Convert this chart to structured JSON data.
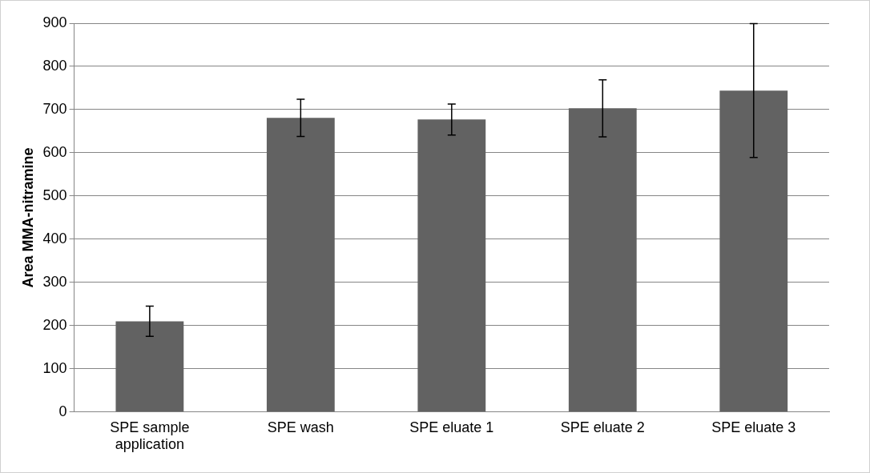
{
  "chart_data": {
    "type": "bar",
    "ylabel": "Area MMA-nitramine",
    "categories": [
      "SPE sample application",
      "SPE wash",
      "SPE eluate 1",
      "SPE eluate 2",
      "SPE eluate 3"
    ],
    "values": [
      210,
      681,
      677,
      703,
      744
    ],
    "errors": [
      35,
      43,
      36,
      66,
      155
    ],
    "color": "#626262",
    "ylim": [
      0,
      900
    ],
    "yticks": [
      0,
      100,
      200,
      300,
      400,
      500,
      600,
      700,
      800,
      900
    ],
    "grid": "y",
    "legend": false
  }
}
